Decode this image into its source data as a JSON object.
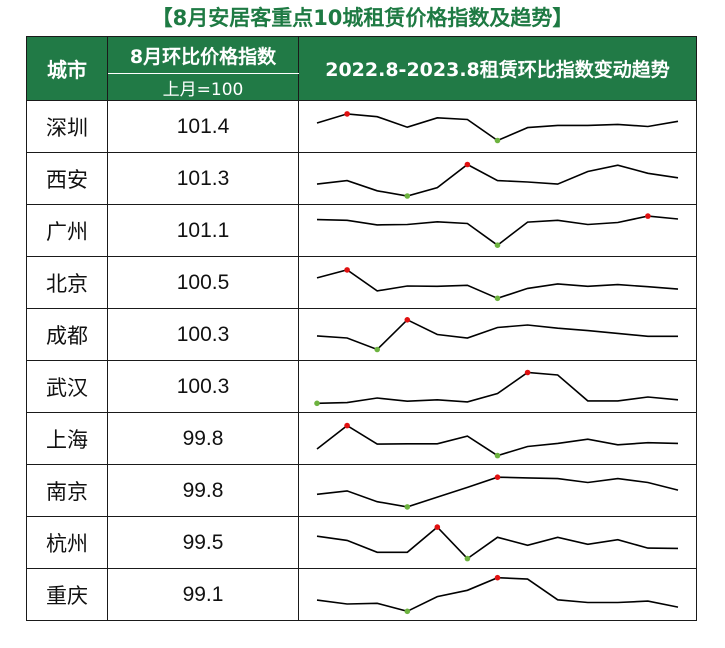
{
  "title": "【8月安居客重点10城租赁价格指数及趋势】",
  "headers": {
    "city": "城市",
    "index": "8月环比价格指数",
    "index_sub": "上月=100",
    "trend": "2022.8-2023.8租赁环比指数变动趋势"
  },
  "colors": {
    "header_bg": "#217a46",
    "title": "#1e7a43",
    "line": "#000000",
    "max_marker": "#e01010",
    "min_marker": "#6db33f"
  },
  "chart_data": {
    "type": "table",
    "x": [
      "2022.8",
      "2022.9",
      "2022.10",
      "2022.11",
      "2022.12",
      "2023.1",
      "2023.2",
      "2023.3",
      "2023.4",
      "2023.5",
      "2023.6",
      "2023.7",
      "2023.8"
    ],
    "rows": [
      {
        "city": "深圳",
        "value": "101.4",
        "trend": [
          60,
          86,
          78,
          48,
          75,
          70,
          10,
          47,
          53,
          53,
          56,
          50,
          65
        ]
      },
      {
        "city": "西安",
        "value": "101.3",
        "trend": [
          34,
          44,
          15,
          0,
          24,
          90,
          44,
          40,
          34,
          70,
          88,
          65,
          52
        ]
      },
      {
        "city": "广州",
        "value": "101.1",
        "trend": [
          81,
          79,
          66,
          67,
          75,
          70,
          8,
          74,
          79,
          67,
          73,
          91,
          83
        ]
      },
      {
        "city": "北京",
        "value": "100.5",
        "trend": [
          63,
          86,
          26,
          40,
          39,
          42,
          5,
          33,
          46,
          39,
          44,
          38,
          31
        ]
      },
      {
        "city": "成都",
        "value": "100.3",
        "trend": [
          46,
          40,
          7,
          92,
          50,
          40,
          70,
          77,
          68,
          61,
          53,
          45,
          45
        ]
      },
      {
        "city": "武汉",
        "value": "100.3",
        "trend": [
          2,
          4,
          17,
          8,
          12,
          6,
          30,
          90,
          83,
          9,
          9,
          20,
          12
        ]
      },
      {
        "city": "上海",
        "value": "99.8",
        "trend": [
          20,
          87,
          34,
          35,
          35,
          57,
          1,
          27,
          36,
          48,
          32,
          38,
          36
        ]
      },
      {
        "city": "南京",
        "value": "99.8",
        "trend": [
          39,
          49,
          18,
          3,
          31,
          59,
          88,
          86,
          84,
          73,
          84,
          73,
          51
        ]
      },
      {
        "city": "杭州",
        "value": "99.5",
        "trend": [
          68,
          56,
          22,
          22,
          94,
          4,
          65,
          42,
          65,
          45,
          58,
          34,
          33
        ]
      },
      {
        "city": "重庆",
        "value": "99.1",
        "trend": [
          34,
          23,
          25,
          2,
          44,
          62,
          98,
          94,
          35,
          27,
          27,
          31,
          14
        ]
      }
    ]
  }
}
